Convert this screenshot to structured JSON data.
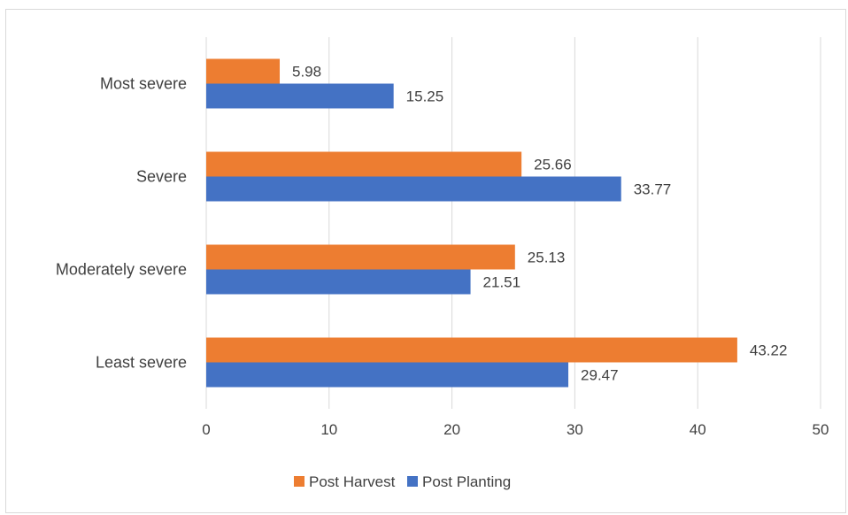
{
  "chart_data": {
    "type": "bar",
    "orientation": "horizontal",
    "categories": [
      "Least severe",
      "Moderately severe",
      "Severe",
      "Most severe"
    ],
    "series": [
      {
        "name": "Post Harvest",
        "values": [
          43.22,
          25.13,
          25.66,
          5.98
        ],
        "labels": [
          "43.22",
          "25.13",
          "25.66",
          "5.98"
        ],
        "color": "#ED7D31"
      },
      {
        "name": "Post Planting",
        "values": [
          29.47,
          21.51,
          33.77,
          15.25
        ],
        "labels": [
          "29.47",
          "21.51",
          "33.77",
          "15.25"
        ],
        "color": "#4472C4"
      }
    ],
    "xlim": [
      0,
      50
    ],
    "xticks": [
      0,
      10,
      20,
      30,
      40,
      50
    ],
    "xtick_labels": [
      "0",
      "10",
      "20",
      "30",
      "40",
      "50"
    ],
    "grid": true,
    "legend_position": "bottom",
    "title": "",
    "xlabel": "",
    "ylabel": "",
    "gridline_color": "#d9d9d9"
  }
}
